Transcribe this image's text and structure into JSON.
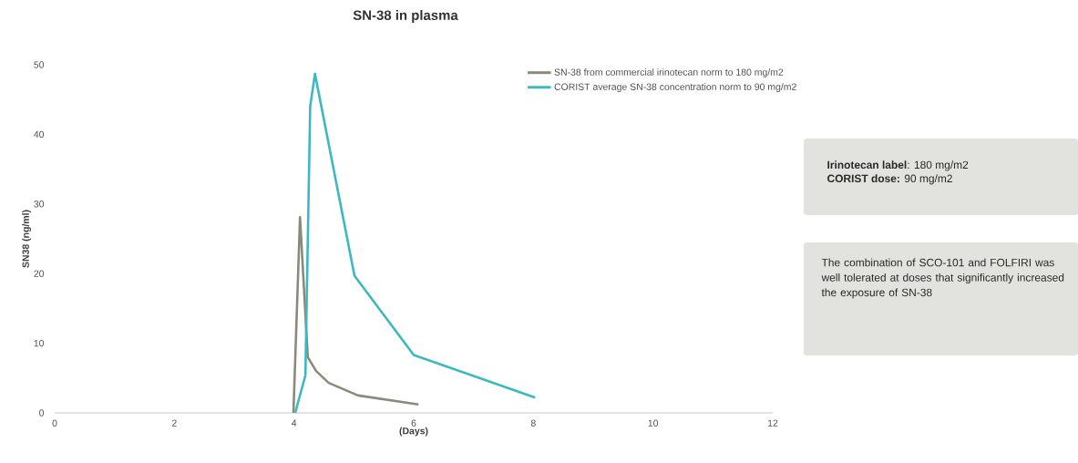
{
  "chart_data": {
    "type": "line",
    "title": "SN-38 in plasma",
    "xlabel": "(Days)",
    "ylabel": "SN38 (ng/ml)",
    "xlim": [
      0,
      12
    ],
    "xticks": [
      0,
      2,
      4,
      6,
      8,
      10,
      12
    ],
    "ylim": [
      0,
      50
    ],
    "yticks": [
      0,
      10,
      20,
      30,
      40,
      50
    ],
    "grid": false,
    "legend": "top right",
    "marker": "none",
    "line_style": "solid",
    "series": [
      {
        "name": "SN-38 from commercial irinotecan norm to 180 mg/m2",
        "color": "#8a8a7c",
        "x": [
          3.99,
          4.1,
          4.23,
          4.37,
          4.58,
          5.07,
          6.08
        ],
        "values": [
          0,
          28.1,
          8,
          6,
          4.3,
          2.5,
          1.2
        ]
      },
      {
        "name": "CORIST average SN-38 concentration norm to 90 mg/m2",
        "color": "#3bb8c0",
        "x": [
          4.02,
          4.19,
          4.27,
          4.35,
          5.01,
          6.0,
          8.03
        ],
        "values": [
          0,
          5.4,
          44,
          48.7,
          19.7,
          8.3,
          2.2
        ]
      }
    ],
    "annotations": [
      "**Irinotecan label**: 180 mg/m2",
      "**CORIST dose:** 90 mg/m2",
      "The combination of SCO-101 and FOLFIRI was well tolerated at doses that significantly increased the exposure of SN-38"
    ]
  }
}
